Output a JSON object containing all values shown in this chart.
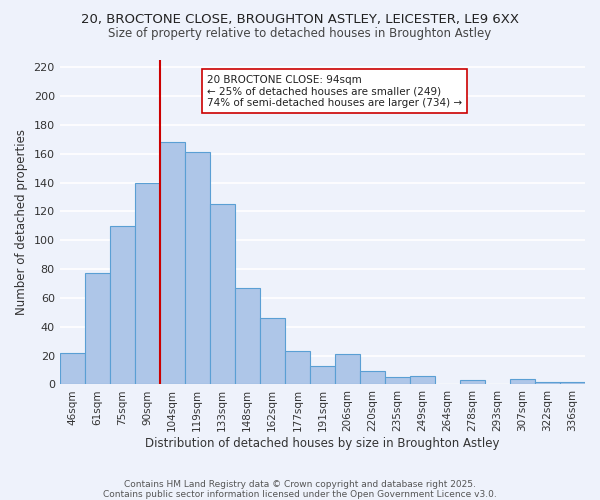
{
  "title": "20, BROCTONE CLOSE, BROUGHTON ASTLEY, LEICESTER, LE9 6XX",
  "subtitle": "Size of property relative to detached houses in Broughton Astley",
  "xlabel": "Distribution of detached houses by size in Broughton Astley",
  "ylabel": "Number of detached properties",
  "bar_labels": [
    "46sqm",
    "61sqm",
    "75sqm",
    "90sqm",
    "104sqm",
    "119sqm",
    "133sqm",
    "148sqm",
    "162sqm",
    "177sqm",
    "191sqm",
    "206sqm",
    "220sqm",
    "235sqm",
    "249sqm",
    "264sqm",
    "278sqm",
    "293sqm",
    "307sqm",
    "322sqm",
    "336sqm"
  ],
  "bar_heights": [
    22,
    77,
    110,
    140,
    168,
    161,
    125,
    67,
    46,
    23,
    13,
    21,
    9,
    5,
    6,
    0,
    3,
    0,
    4,
    2,
    2
  ],
  "bar_color": "#aec6e8",
  "bar_edge_color": "#5a9fd4",
  "background_color": "#eef2fb",
  "grid_color": "#ffffff",
  "vline_x": 3.5,
  "vline_color": "#cc0000",
  "annotation_title": "20 BROCTONE CLOSE: 94sqm",
  "annotation_line1": "← 25% of detached houses are smaller (249)",
  "annotation_line2": "74% of semi-detached houses are larger (734) →",
  "annotation_box_color": "#ffffff",
  "annotation_box_edge": "#cc0000",
  "footnote1": "Contains HM Land Registry data © Crown copyright and database right 2025.",
  "footnote2": "Contains public sector information licensed under the Open Government Licence v3.0.",
  "ylim": [
    0,
    225
  ],
  "yticks": [
    0,
    20,
    40,
    60,
    80,
    100,
    120,
    140,
    160,
    180,
    200,
    220
  ]
}
